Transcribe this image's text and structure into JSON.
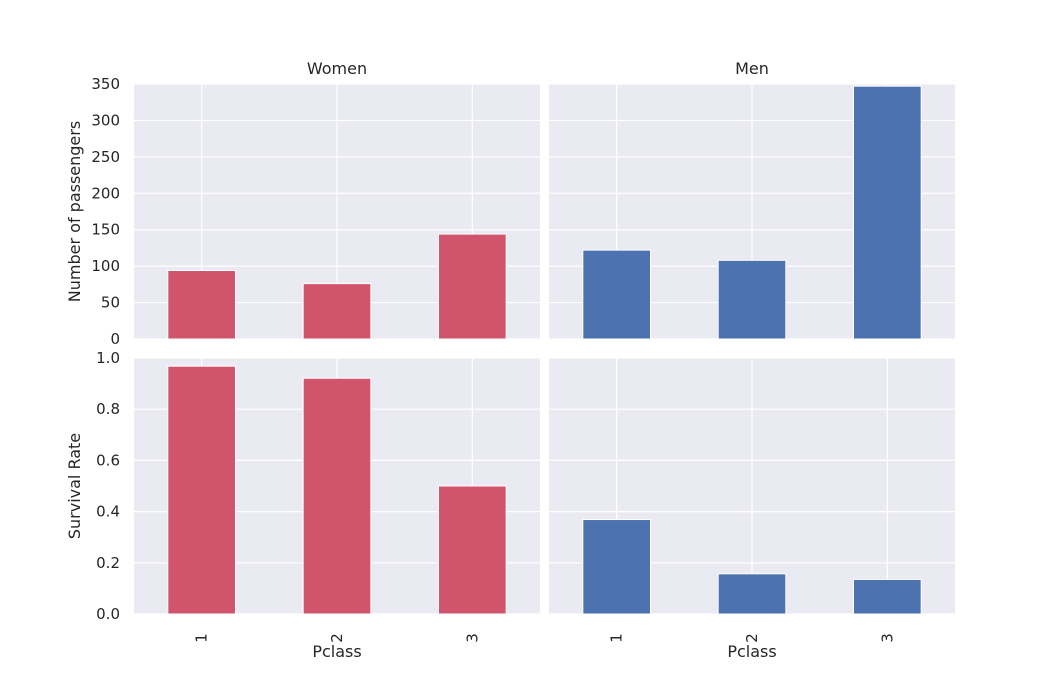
{
  "chart_data": [
    {
      "type": "bar",
      "title": "Women",
      "categories": [
        "1",
        "2",
        "3"
      ],
      "values": [
        94,
        76,
        144
      ],
      "ylabel": "Number of passengers",
      "xlabel": "",
      "ylim": [
        0,
        350
      ],
      "yticks": [
        "0",
        "50",
        "100",
        "150",
        "200",
        "250",
        "300",
        "350"
      ],
      "color": "#cf546c"
    },
    {
      "type": "bar",
      "title": "Men",
      "categories": [
        "1",
        "2",
        "3"
      ],
      "values": [
        122,
        108,
        347
      ],
      "ylabel": "",
      "xlabel": "",
      "ylim": [
        0,
        350
      ],
      "color": "#4c72b0"
    },
    {
      "type": "bar",
      "title": "",
      "categories": [
        "1",
        "2",
        "3"
      ],
      "values": [
        0.968,
        0.921,
        0.5
      ],
      "ylabel": "Survival Rate",
      "xlabel": "Pclass",
      "ylim": [
        0,
        1
      ],
      "yticks": [
        "0.0",
        "0.2",
        "0.4",
        "0.6",
        "0.8",
        "1.0"
      ],
      "color": "#cf546c"
    },
    {
      "type": "bar",
      "title": "",
      "categories": [
        "1",
        "2",
        "3"
      ],
      "values": [
        0.369,
        0.157,
        0.135
      ],
      "ylabel": "",
      "xlabel": "Pclass",
      "ylim": [
        0,
        1
      ],
      "color": "#4c72b0"
    }
  ],
  "style": {
    "grid": true,
    "background": "#eaeaf2",
    "grid_color": "#ffffff"
  }
}
